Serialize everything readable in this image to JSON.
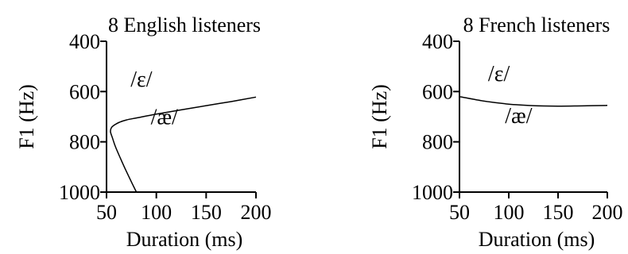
{
  "chart_data": [
    {
      "type": "line",
      "title": "8 English listeners",
      "xlabel": "Duration (ms)",
      "ylabel": "F1 (Hz)",
      "xlim": [
        50,
        200
      ],
      "ylim": [
        400,
        1000
      ],
      "y_inverted": true,
      "x_ticks": [
        50,
        100,
        150,
        200
      ],
      "y_ticks": [
        400,
        600,
        800,
        1000
      ],
      "annotations": [
        {
          "text": "/ε/",
          "x": 85,
          "y": 580
        },
        {
          "text": "/æ/",
          "x": 108,
          "y": 730
        }
      ],
      "series": [
        {
          "x": [
            80,
            72,
            65,
            59,
            56,
            54,
            55,
            58,
            63,
            70,
            80,
            100,
            125,
            150,
            175,
            200
          ],
          "y": [
            1000,
            935,
            875,
            820,
            785,
            760,
            743,
            733,
            722,
            713,
            705,
            690,
            673,
            656,
            640,
            622
          ]
        }
      ]
    },
    {
      "type": "line",
      "title": "8 French listeners",
      "xlabel": "Duration (ms)",
      "ylabel": "F1 (Hz)",
      "xlim": [
        50,
        200
      ],
      "ylim": [
        400,
        1000
      ],
      "y_inverted": true,
      "x_ticks": [
        50,
        100,
        150,
        200
      ],
      "y_ticks": [
        400,
        600,
        800,
        1000
      ],
      "annotations": [
        {
          "text": "/ε/",
          "x": 90,
          "y": 558
        },
        {
          "text": "/æ/",
          "x": 110,
          "y": 725
        }
      ],
      "series": [
        {
          "x": [
            50,
            75,
            100,
            125,
            150,
            175,
            200
          ],
          "y": [
            620,
            638,
            650,
            656,
            658,
            657,
            655
          ]
        }
      ]
    }
  ]
}
